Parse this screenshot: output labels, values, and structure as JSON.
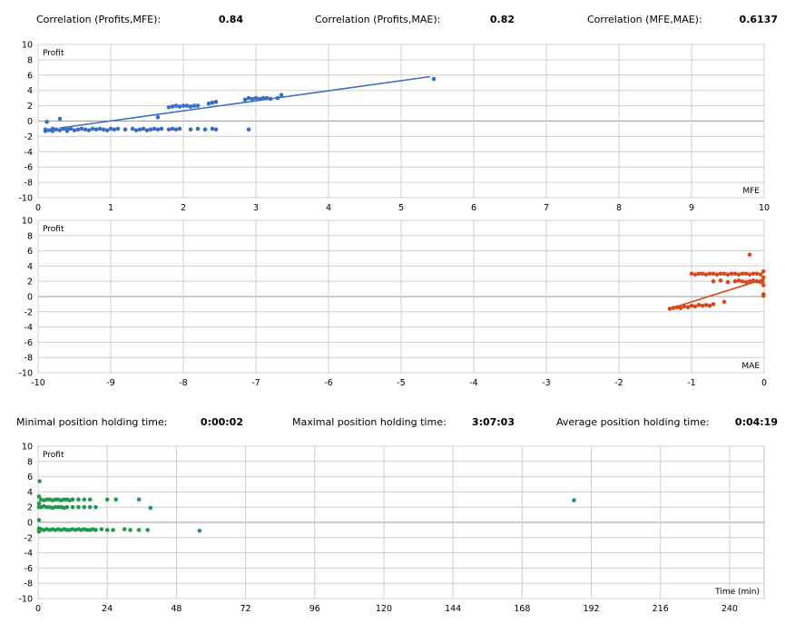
{
  "stats_top": {
    "corr_profit_mfe_label": "Correlation (Profits,MFE):",
    "corr_profit_mfe_value": "0.84",
    "corr_profit_mae_label": "Correlation (Profits,MAE):",
    "corr_profit_mae_value": "0.82",
    "corr_mfe_mae_label": "Correlation (MFE,MAE):",
    "corr_mfe_mae_value": "0.6137"
  },
  "stats_mid": {
    "min_hold_label": "Minimal position holding time:",
    "min_hold_value": "0:00:02",
    "max_hold_label": "Maximal position holding time:",
    "max_hold_value": "3:07:03",
    "avg_hold_label": "Average position holding time:",
    "avg_hold_value": "0:04:19"
  },
  "colors": {
    "mfe": "#3a6fc4",
    "mae": "#d9481c",
    "time": "#1f9a4e",
    "grid": "#d0d0d0",
    "zero": "#9a9a9a"
  },
  "chart_data": [
    {
      "type": "scatter",
      "ylabel": "Profit",
      "xlabel": "MFE",
      "xlim": [
        0,
        10
      ],
      "ylim": [
        -10,
        10
      ],
      "xticks": [
        0,
        1,
        2,
        3,
        4,
        5,
        6,
        7,
        8,
        9,
        10
      ],
      "yticks": [
        10,
        8,
        6,
        4,
        2,
        0,
        -2,
        -4,
        -6,
        -8,
        -10
      ],
      "trendline": [
        [
          0.3,
          -0.9
        ],
        [
          5.4,
          5.8
        ]
      ],
      "points": [
        [
          0.1,
          -1.1
        ],
        [
          0.15,
          -1.2
        ],
        [
          0.2,
          -1.0
        ],
        [
          0.25,
          -1.1
        ],
        [
          0.3,
          -1.2
        ],
        [
          0.35,
          -1.0
        ],
        [
          0.4,
          -1.1
        ],
        [
          0.45,
          -1.0
        ],
        [
          0.5,
          -1.2
        ],
        [
          0.55,
          -1.1
        ],
        [
          0.6,
          -1.0
        ],
        [
          0.65,
          -1.1
        ],
        [
          0.7,
          -1.2
        ],
        [
          0.75,
          -1.0
        ],
        [
          0.8,
          -1.1
        ],
        [
          0.85,
          -1.0
        ],
        [
          0.9,
          -1.1
        ],
        [
          0.95,
          -1.2
        ],
        [
          1.0,
          -1.0
        ],
        [
          1.05,
          -1.1
        ],
        [
          1.1,
          -1.0
        ],
        [
          1.2,
          -1.1
        ],
        [
          1.3,
          -1.0
        ],
        [
          1.35,
          -1.2
        ],
        [
          1.4,
          -1.1
        ],
        [
          1.45,
          -1.0
        ],
        [
          1.5,
          -1.2
        ],
        [
          1.55,
          -1.1
        ],
        [
          1.6,
          -1.0
        ],
        [
          1.65,
          -1.1
        ],
        [
          1.7,
          -1.0
        ],
        [
          1.8,
          -1.1
        ],
        [
          1.85,
          -1.0
        ],
        [
          1.9,
          -1.1
        ],
        [
          1.95,
          -1.0
        ],
        [
          2.1,
          -1.1
        ],
        [
          2.2,
          -1.0
        ],
        [
          2.3,
          -1.1
        ],
        [
          2.4,
          -1.0
        ],
        [
          2.45,
          -1.1
        ],
        [
          2.9,
          -1.1
        ],
        [
          0.12,
          -0.1
        ],
        [
          0.3,
          0.3
        ],
        [
          0.1,
          -1.3
        ],
        [
          0.2,
          -1.3
        ],
        [
          0.4,
          -1.3
        ],
        [
          1.65,
          0.5
        ],
        [
          1.8,
          1.8
        ],
        [
          1.85,
          1.9
        ],
        [
          1.9,
          2.0
        ],
        [
          1.95,
          1.9
        ],
        [
          2.0,
          2.0
        ],
        [
          2.05,
          2.0
        ],
        [
          2.1,
          1.9
        ],
        [
          2.15,
          2.0
        ],
        [
          2.2,
          2.0
        ],
        [
          2.35,
          2.3
        ],
        [
          2.4,
          2.4
        ],
        [
          2.45,
          2.5
        ],
        [
          2.85,
          2.8
        ],
        [
          2.9,
          3.0
        ],
        [
          2.95,
          2.9
        ],
        [
          3.0,
          3.0
        ],
        [
          3.05,
          2.9
        ],
        [
          3.1,
          3.0
        ],
        [
          3.15,
          3.0
        ],
        [
          3.2,
          2.9
        ],
        [
          3.3,
          3.0
        ],
        [
          3.35,
          3.4
        ],
        [
          5.45,
          5.5
        ]
      ]
    },
    {
      "type": "scatter",
      "ylabel": "Profit",
      "xlabel": "MAE",
      "xlim": [
        -10,
        0
      ],
      "ylim": [
        -10,
        10
      ],
      "xticks": [
        -10,
        -9,
        -8,
        -7,
        -6,
        -5,
        -4,
        -3,
        -2,
        -1,
        0
      ],
      "yticks": [
        10,
        8,
        6,
        4,
        2,
        0,
        -2,
        -4,
        -6,
        -8,
        -10
      ],
      "trendline": [
        [
          -1.3,
          -1.6
        ],
        [
          0.0,
          2.3
        ]
      ],
      "points": [
        [
          -1.3,
          -1.6
        ],
        [
          -1.25,
          -1.5
        ],
        [
          -1.2,
          -1.4
        ],
        [
          -1.15,
          -1.5
        ],
        [
          -1.1,
          -1.3
        ],
        [
          -1.05,
          -1.4
        ],
        [
          -1.0,
          -1.2
        ],
        [
          -0.95,
          -1.3
        ],
        [
          -0.9,
          -1.1
        ],
        [
          -0.85,
          -1.2
        ],
        [
          -0.8,
          -1.1
        ],
        [
          -0.75,
          -1.2
        ],
        [
          -0.7,
          -1.0
        ],
        [
          -0.55,
          -0.7
        ],
        [
          -1.0,
          3.0
        ],
        [
          -0.95,
          2.9
        ],
        [
          -0.9,
          3.0
        ],
        [
          -0.85,
          3.0
        ],
        [
          -0.8,
          2.9
        ],
        [
          -0.75,
          3.0
        ],
        [
          -0.7,
          3.0
        ],
        [
          -0.65,
          2.9
        ],
        [
          -0.6,
          3.0
        ],
        [
          -0.55,
          3.0
        ],
        [
          -0.5,
          2.9
        ],
        [
          -0.45,
          3.0
        ],
        [
          -0.4,
          3.0
        ],
        [
          -0.35,
          2.9
        ],
        [
          -0.3,
          3.0
        ],
        [
          -0.25,
          3.0
        ],
        [
          -0.2,
          2.9
        ],
        [
          -0.15,
          3.0
        ],
        [
          -0.1,
          3.0
        ],
        [
          -0.05,
          2.9
        ],
        [
          -0.7,
          2.0
        ],
        [
          -0.6,
          2.1
        ],
        [
          -0.5,
          1.9
        ],
        [
          -0.4,
          2.0
        ],
        [
          -0.35,
          2.1
        ],
        [
          -0.3,
          2.0
        ],
        [
          -0.25,
          1.9
        ],
        [
          -0.2,
          2.0
        ],
        [
          -0.15,
          2.1
        ],
        [
          -0.1,
          2.0
        ],
        [
          -0.05,
          1.9
        ],
        [
          -0.02,
          2.0
        ],
        [
          -0.01,
          3.3
        ],
        [
          -0.01,
          2.5
        ],
        [
          -0.01,
          1.5
        ],
        [
          -0.01,
          0.3
        ],
        [
          -0.01,
          0.1
        ],
        [
          -0.2,
          5.5
        ]
      ]
    },
    {
      "type": "scatter",
      "ylabel": "Profit",
      "xlabel": "Time (min)",
      "xlim": [
        0,
        252
      ],
      "ylim": [
        -10,
        10
      ],
      "xticks": [
        0,
        24,
        48,
        72,
        96,
        120,
        144,
        168,
        192,
        216,
        240
      ],
      "yticks": [
        10,
        8,
        6,
        4,
        2,
        0,
        -2,
        -4,
        -6,
        -8,
        -10
      ],
      "points": [
        [
          0.3,
          3.4
        ],
        [
          0.3,
          2.5
        ],
        [
          0.3,
          2.0
        ],
        [
          0.3,
          0.3
        ],
        [
          0.3,
          -0.8
        ],
        [
          0.3,
          -1.2
        ],
        [
          0.5,
          5.4
        ],
        [
          1,
          3.0
        ],
        [
          2,
          2.9
        ],
        [
          3,
          3.0
        ],
        [
          4,
          3.0
        ],
        [
          5,
          2.9
        ],
        [
          6,
          3.0
        ],
        [
          7,
          3.0
        ],
        [
          8,
          2.9
        ],
        [
          9,
          3.0
        ],
        [
          10,
          3.0
        ],
        [
          11,
          2.9
        ],
        [
          12,
          3.0
        ],
        [
          14,
          3.0
        ],
        [
          16,
          3.0
        ],
        [
          18,
          3.0
        ],
        [
          24,
          3.0
        ],
        [
          27,
          3.0
        ],
        [
          35,
          3.0
        ],
        [
          1,
          2.0
        ],
        [
          2,
          2.1
        ],
        [
          3,
          2.0
        ],
        [
          4,
          2.0
        ],
        [
          5,
          1.9
        ],
        [
          6,
          2.0
        ],
        [
          7,
          2.0
        ],
        [
          8,
          2.0
        ],
        [
          9,
          1.9
        ],
        [
          10,
          2.0
        ],
        [
          12,
          2.0
        ],
        [
          14,
          2.0
        ],
        [
          16,
          2.0
        ],
        [
          18,
          2.0
        ],
        [
          20,
          2.0
        ],
        [
          39,
          1.9
        ],
        [
          1,
          -0.9
        ],
        [
          2,
          -1.0
        ],
        [
          3,
          -0.9
        ],
        [
          4,
          -1.0
        ],
        [
          5,
          -0.9
        ],
        [
          6,
          -1.0
        ],
        [
          7,
          -0.9
        ],
        [
          8,
          -1.0
        ],
        [
          9,
          -0.9
        ],
        [
          10,
          -1.0
        ],
        [
          11,
          -1.0
        ],
        [
          12,
          -0.9
        ],
        [
          13,
          -1.0
        ],
        [
          14,
          -0.9
        ],
        [
          15,
          -1.0
        ],
        [
          16,
          -0.9
        ],
        [
          17,
          -1.0
        ],
        [
          18,
          -1.0
        ],
        [
          19,
          -0.9
        ],
        [
          20,
          -1.0
        ],
        [
          22,
          -0.9
        ],
        [
          24,
          -1.0
        ],
        [
          26,
          -1.0
        ],
        [
          30,
          -0.9
        ],
        [
          32,
          -1.0
        ],
        [
          35,
          -1.0
        ],
        [
          38,
          -1.0
        ],
        [
          56,
          -1.1
        ],
        [
          186,
          2.9
        ]
      ]
    }
  ]
}
